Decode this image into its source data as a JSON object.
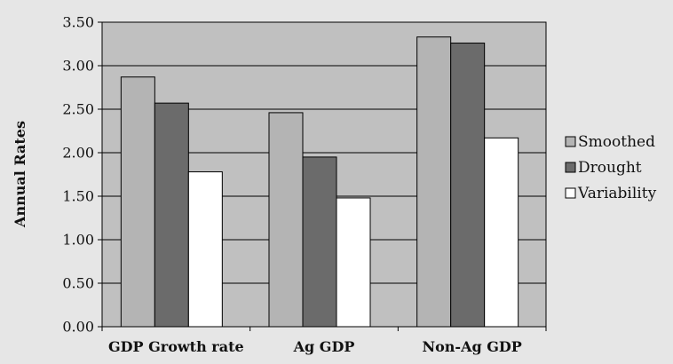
{
  "chart_data": {
    "type": "bar",
    "title": "",
    "xlabel": "",
    "ylabel": "Annual Rates",
    "ylim": [
      0,
      3.5
    ],
    "yticks": [
      "0.00",
      "0.50",
      "1.00",
      "1.50",
      "2.00",
      "2.50",
      "3.00",
      "3.50"
    ],
    "grid": true,
    "legend_position": "right",
    "categories": [
      "GDP Growth rate",
      "Ag GDP",
      "Non-Ag GDP"
    ],
    "series": [
      {
        "name": "Smoothed",
        "values": [
          2.87,
          2.46,
          3.33
        ],
        "color": "#b4b4b4"
      },
      {
        "name": "Drought",
        "values": [
          2.57,
          1.95,
          3.26
        ],
        "color": "#6b6b6b"
      },
      {
        "name": "Variability",
        "values": [
          1.78,
          1.48,
          2.17
        ],
        "color": "#ffffff"
      }
    ],
    "plot_background": "#c0c0c0"
  }
}
